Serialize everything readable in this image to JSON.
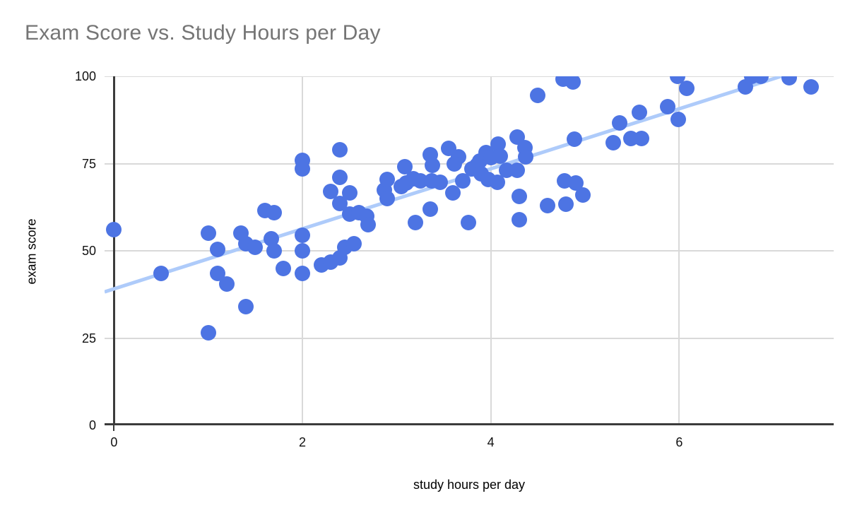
{
  "chart_data": {
    "type": "scatter",
    "title": "Exam Score vs. Study Hours per Day",
    "xlabel": "study hours per day",
    "ylabel": "exam score",
    "xlim": [
      -0.1,
      7.64
    ],
    "ylim": [
      0,
      100
    ],
    "x_ticks": [
      "0",
      "2",
      "4",
      "6"
    ],
    "x_tick_values": [
      0,
      2,
      4,
      6
    ],
    "y_ticks": [
      "0",
      "25",
      "50",
      "75",
      "100"
    ],
    "y_tick_values": [
      0,
      25,
      50,
      75,
      100
    ],
    "grid": true,
    "legend": "none",
    "point_color": "#4d74e3",
    "gridline_color": "#d9d9d9",
    "axis_color": "#3c3c3c",
    "title_color": "#757575",
    "trendline": {
      "color": "#aecbfa",
      "slope": 8.6,
      "intercept": 39.1,
      "x_start": -0.1
    },
    "points": [
      [
        0,
        56
      ],
      [
        0.5,
        43.5
      ],
      [
        1,
        55
      ],
      [
        1,
        26.5
      ],
      [
        1.1,
        50.5
      ],
      [
        1.1,
        43.5
      ],
      [
        1.2,
        40.5
      ],
      [
        1.35,
        55
      ],
      [
        1.4,
        52
      ],
      [
        1.4,
        34
      ],
      [
        1.5,
        51
      ],
      [
        1.6,
        61.5
      ],
      [
        1.7,
        61
      ],
      [
        1.67,
        53.5
      ],
      [
        1.7,
        50
      ],
      [
        1.8,
        45
      ],
      [
        2,
        76
      ],
      [
        2,
        73.5
      ],
      [
        2,
        54.5
      ],
      [
        2,
        50
      ],
      [
        2,
        43.5
      ],
      [
        2.2,
        46
      ],
      [
        2.3,
        46.7
      ],
      [
        2.4,
        48
      ],
      [
        2.45,
        51
      ],
      [
        2.55,
        52
      ],
      [
        2.4,
        79
      ],
      [
        2.4,
        71
      ],
      [
        2.3,
        67
      ],
      [
        2.5,
        66.5
      ],
      [
        2.4,
        63.5
      ],
      [
        2.5,
        60.5
      ],
      [
        2.6,
        61
      ],
      [
        2.68,
        60
      ],
      [
        2.7,
        57.5
      ],
      [
        2.87,
        67.5
      ],
      [
        2.9,
        65
      ],
      [
        2.9,
        70.5
      ],
      [
        3.05,
        68.5
      ],
      [
        3.1,
        69.5
      ],
      [
        3.18,
        70.7
      ],
      [
        3.25,
        70
      ],
      [
        3.09,
        74
      ],
      [
        3.2,
        58
      ],
      [
        3.36,
        62
      ],
      [
        3.36,
        77.5
      ],
      [
        3.38,
        74.5
      ],
      [
        3.37,
        70
      ],
      [
        3.46,
        69.7
      ],
      [
        3.55,
        79.3
      ],
      [
        3.66,
        77
      ],
      [
        3.61,
        75
      ],
      [
        3.6,
        66.5
      ],
      [
        3.7,
        70
      ],
      [
        3.76,
        58
      ],
      [
        3.8,
        73.4
      ],
      [
        3.85,
        74.4
      ],
      [
        3.88,
        75.8
      ],
      [
        3.95,
        78.2
      ],
      [
        4,
        76.8
      ],
      [
        3.9,
        72
      ],
      [
        3.97,
        70.4
      ],
      [
        4.07,
        69.7
      ],
      [
        4.08,
        80.5
      ],
      [
        4.1,
        77.1
      ],
      [
        4.17,
        73
      ],
      [
        4.28,
        73
      ],
      [
        4.28,
        82.6
      ],
      [
        4.36,
        79.5
      ],
      [
        4.37,
        77
      ],
      [
        4.3,
        65.5
      ],
      [
        4.3,
        59
      ],
      [
        4.5,
        94.6
      ],
      [
        4.6,
        63
      ],
      [
        4.77,
        99.2
      ],
      [
        4.87,
        98.4
      ],
      [
        4.78,
        70
      ],
      [
        4.9,
        69.4
      ],
      [
        4.8,
        63.3
      ],
      [
        4.89,
        82
      ],
      [
        4.98,
        66
      ],
      [
        5.3,
        81
      ],
      [
        5.37,
        86.6
      ],
      [
        5.49,
        82.2
      ],
      [
        5.6,
        82.2
      ],
      [
        5.58,
        89.7
      ],
      [
        5.88,
        91.3
      ],
      [
        5.98,
        100
      ],
      [
        6.08,
        96.5
      ],
      [
        5.99,
        87.6
      ],
      [
        6.7,
        97
      ],
      [
        6.77,
        100
      ],
      [
        6.87,
        100
      ],
      [
        7.17,
        99.5
      ],
      [
        7.4,
        97
      ]
    ]
  }
}
